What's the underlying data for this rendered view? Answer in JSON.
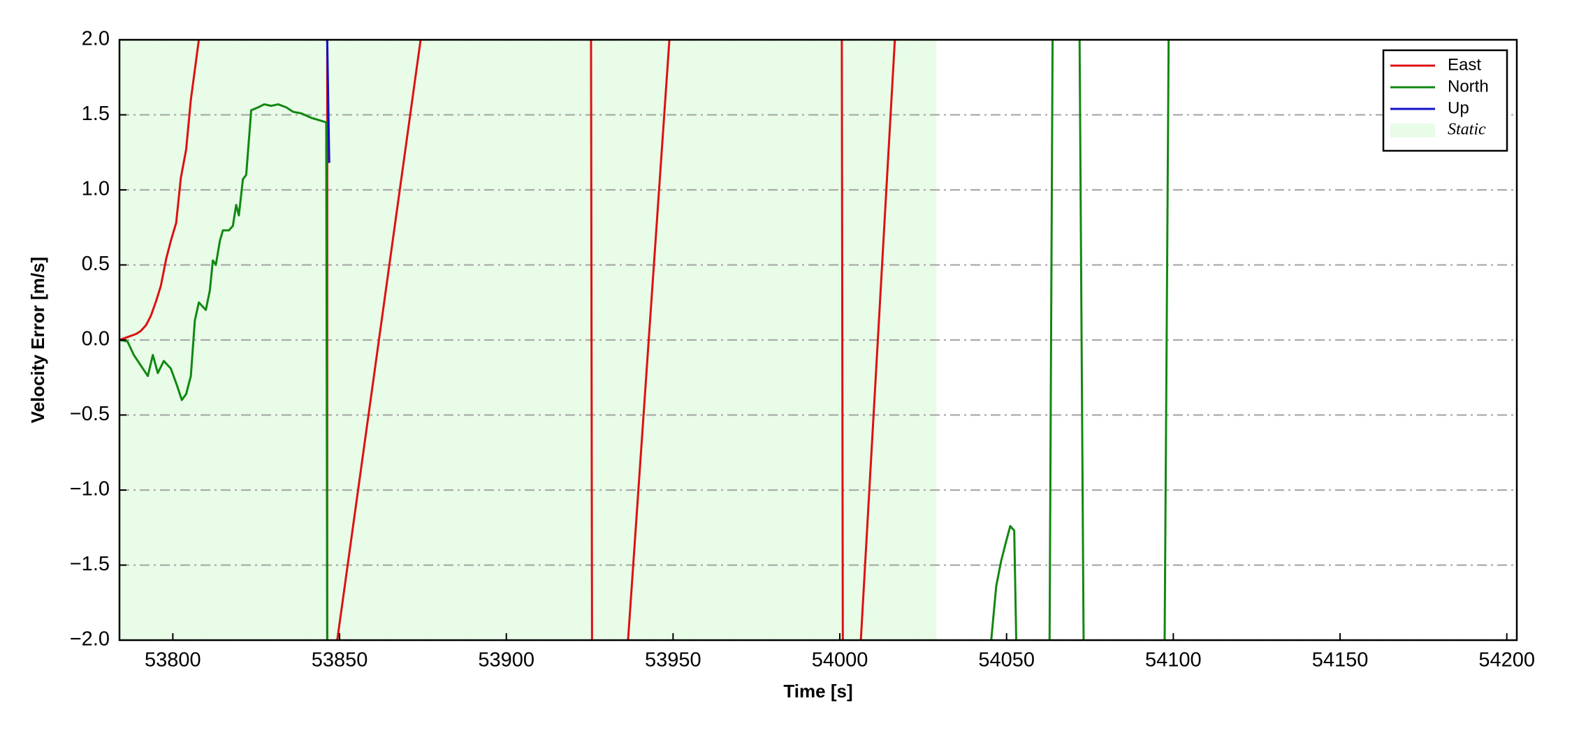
{
  "chart_data": {
    "type": "line",
    "x_label": "Time [s]",
    "y_label": "Velocity Error [m/s]",
    "xlim": [
      53784,
      54203
    ],
    "ylim": [
      -2,
      2
    ],
    "xticks": [
      53800,
      53850,
      53900,
      53950,
      54000,
      54050,
      54100,
      54150,
      54200
    ],
    "yticks": [
      {
        "value": -2,
        "label": "−2.0"
      },
      {
        "value": -1.5,
        "label": "−1.5"
      },
      {
        "value": -1,
        "label": "−1.0"
      },
      {
        "value": -0.5,
        "label": "−0.5"
      },
      {
        "value": 0,
        "label": "0.0"
      },
      {
        "value": 0.5,
        "label": "0.5"
      },
      {
        "value": 1,
        "label": "1.0"
      },
      {
        "value": 1.5,
        "label": "1.5"
      },
      {
        "value": 2,
        "label": "2.0"
      }
    ],
    "grid": true,
    "legend": "upper right",
    "shaded": {
      "name": "Static",
      "color": "#e8fce8",
      "x": [
        53784,
        54029
      ]
    },
    "series": [
      {
        "name": "East",
        "color": "#dd1111",
        "x": [
          53784,
          53786.5,
          53789,
          53790.4,
          53792,
          53793.4,
          53795,
          53796.4,
          53798,
          53799.4,
          53801,
          53802.4,
          53804,
          53805.4,
          53807.8,
          null,
          53846.3,
          53846.3,
          null,
          53849.3,
          53874.3,
          null,
          53925.4,
          53925.7,
          null,
          53936.5,
          53948.9,
          null,
          54000.6,
          54000.9,
          null,
          54006.3,
          54016.5
        ],
        "values": [
          0,
          0.02,
          0.04,
          0.06,
          0.1,
          0.16,
          0.26,
          0.36,
          0.54,
          0.66,
          0.78,
          1.08,
          1.27,
          1.6,
          2,
          null,
          2,
          -2,
          null,
          -2,
          2,
          null,
          2,
          -2,
          null,
          -2,
          2,
          null,
          2,
          -2,
          null,
          -2,
          2
        ]
      },
      {
        "name": "North",
        "color": "#118811",
        "x": [
          53784,
          53786.4,
          53788.3,
          53790.4,
          53792.5,
          53794,
          53795.5,
          53797.3,
          53799.4,
          53801.2,
          53802.7,
          53804,
          53805.4,
          53806.6,
          53807.8,
          53809.9,
          53811.1,
          53812,
          53812.9,
          53814.1,
          53815,
          53816.8,
          53818,
          53819,
          53819.8,
          53821,
          53822,
          53823.5,
          53825.6,
          53827.4,
          53829.5,
          53831.6,
          53834,
          53836.1,
          53838.5,
          53841.5,
          53844.5,
          53846,
          53846.3,
          null,
          54045.4,
          54046.9,
          54048.4,
          54049.9,
          54051.1,
          54052.3,
          54052.9,
          null,
          54062.9,
          54063.8,
          null,
          54071.9,
          54073.1,
          null,
          54097.4,
          54098.6
        ],
        "values": [
          0,
          -0.01,
          -0.1,
          -0.17,
          -0.24,
          -0.1,
          -0.22,
          -0.14,
          -0.19,
          -0.3,
          -0.4,
          -0.36,
          -0.24,
          0.13,
          0.25,
          0.2,
          0.33,
          0.53,
          0.5,
          0.66,
          0.73,
          0.73,
          0.76,
          0.9,
          0.83,
          1.07,
          1.1,
          1.53,
          1.55,
          1.57,
          1.56,
          1.57,
          1.55,
          1.52,
          1.51,
          1.48,
          1.46,
          1.45,
          -2,
          null,
          -2,
          -1.64,
          -1.47,
          -1.34,
          -1.24,
          -1.27,
          -2,
          null,
          -2,
          2,
          null,
          2,
          -2,
          null,
          -2,
          2
        ]
      },
      {
        "name": "Up",
        "color": "#1111cc",
        "x": [
          53846.3,
          53846.9
        ],
        "values": [
          2,
          1.18
        ]
      }
    ]
  }
}
